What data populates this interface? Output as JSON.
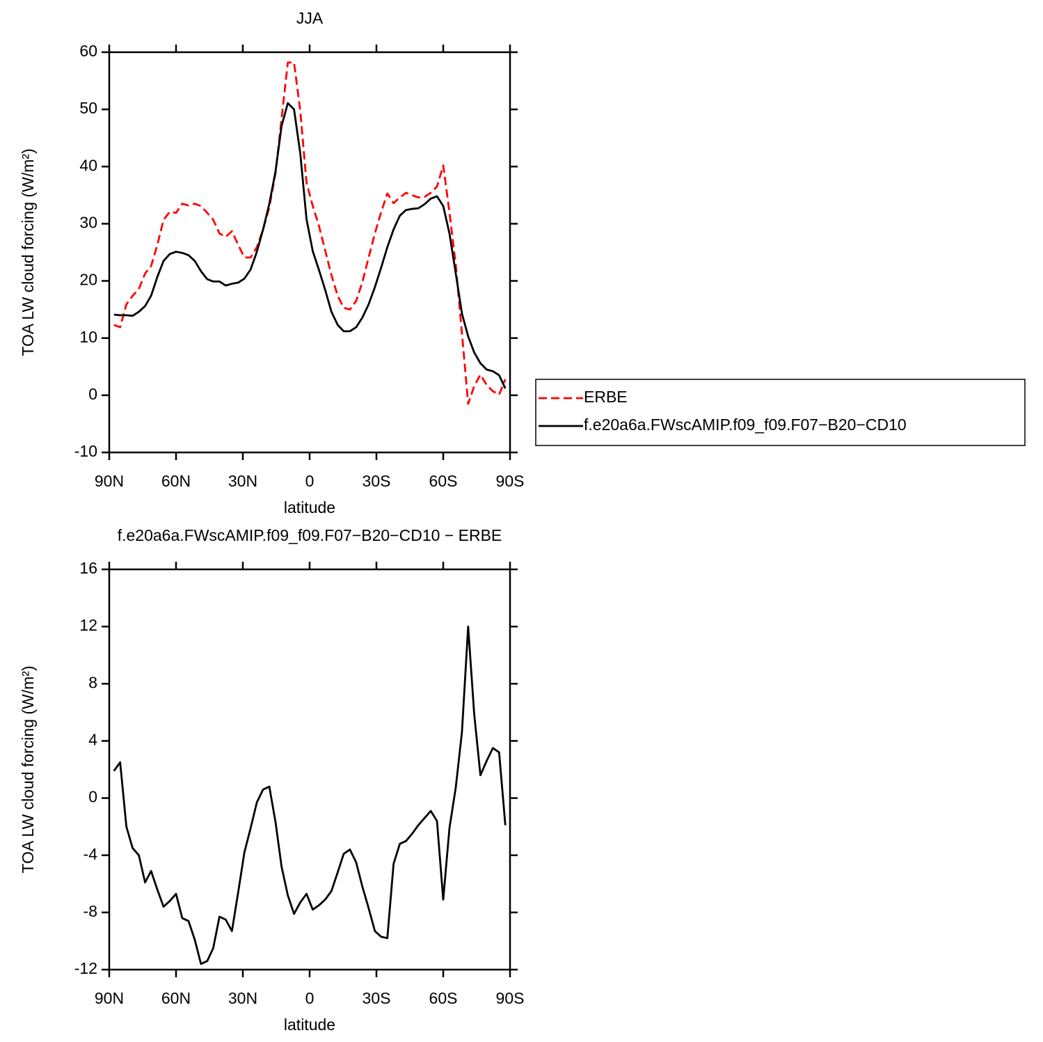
{
  "chart_data": [
    {
      "type": "line",
      "title": "JJA",
      "xlabel": "latitude",
      "ylabel": "TOA LW cloud forcing (W/m²)",
      "x": [
        87.9,
        85.1,
        82.3,
        79.5,
        76.7,
        73.9,
        71.2,
        68.4,
        65.6,
        62.8,
        60.0,
        57.2,
        54.4,
        51.6,
        48.8,
        46.0,
        43.3,
        40.5,
        37.7,
        34.9,
        32.1,
        29.3,
        26.5,
        23.7,
        20.9,
        18.1,
        15.3,
        12.6,
        9.8,
        7.0,
        4.2,
        1.4,
        -1.4,
        -4.2,
        -7.0,
        -9.8,
        -12.6,
        -15.3,
        -18.1,
        -20.9,
        -23.7,
        -26.5,
        -29.3,
        -32.1,
        -34.9,
        -37.7,
        -40.5,
        -43.3,
        -46.0,
        -48.8,
        -51.6,
        -54.4,
        -57.2,
        -60.0,
        -62.8,
        -65.6,
        -68.4,
        -71.2,
        -73.9,
        -76.7,
        -79.5,
        -82.3,
        -85.1,
        -87.9
      ],
      "series": [
        {
          "name": "ERBE",
          "color": "#ff0000",
          "dash": "dashed",
          "values": [
            12.3,
            11.9,
            15.9,
            17.4,
            18.6,
            21.3,
            22.6,
            26.3,
            30.7,
            32.1,
            31.9,
            33.5,
            33.2,
            33.5,
            33.1,
            31.9,
            30.7,
            28.3,
            27.7,
            28.7,
            26.3,
            24.1,
            24.1,
            25.9,
            29.0,
            32.9,
            38.9,
            48.4,
            58.2,
            58.2,
            49.7,
            37.2,
            33.1,
            29.6,
            25.3,
            21.0,
            17.4,
            15.3,
            15.0,
            16.5,
            19.8,
            24.1,
            28.3,
            32.0,
            35.3,
            33.6,
            34.6,
            35.4,
            35.0,
            34.6,
            34.7,
            35.4,
            36.5,
            40.2,
            32.0,
            22.9,
            10.9,
            -1.5,
            1.6,
            3.6,
            1.8,
            0.7,
            0.1,
            2.8
          ]
        },
        {
          "name": "f.e20a6a.FWscAMIP.f09_f09.F07−B20−CD10",
          "color": "#000000",
          "dash": "solid",
          "values": [
            14.1,
            14.0,
            14.0,
            13.9,
            14.6,
            15.6,
            17.4,
            20.7,
            23.5,
            24.7,
            25.1,
            24.9,
            24.5,
            23.5,
            21.7,
            20.3,
            19.9,
            19.9,
            19.2,
            19.5,
            19.7,
            20.4,
            22.0,
            25.1,
            29.0,
            33.5,
            39.2,
            47.1,
            51.1,
            50.0,
            42.3,
            30.8,
            25.2,
            21.9,
            18.4,
            14.6,
            12.3,
            11.2,
            11.2,
            11.9,
            13.6,
            15.9,
            18.9,
            22.3,
            25.9,
            29.0,
            31.4,
            32.4,
            32.6,
            32.7,
            33.4,
            34.4,
            34.8,
            33.1,
            28.3,
            21.4,
            14.3,
            10.3,
            7.5,
            5.6,
            4.5,
            4.2,
            3.5,
            1.2
          ]
        }
      ],
      "xlim": [
        90,
        -90
      ],
      "xticks": [
        {
          "value": 90,
          "label": "90N"
        },
        {
          "value": 60,
          "label": "60N"
        },
        {
          "value": 30,
          "label": "30N"
        },
        0,
        {
          "value": -30,
          "label": "30S"
        },
        {
          "value": -60,
          "label": "60S"
        },
        {
          "value": -90,
          "label": "90S"
        }
      ],
      "ylim": [
        -10,
        60
      ],
      "yticks": [
        -10,
        0,
        10,
        20,
        30,
        40,
        50,
        60
      ],
      "legend": "right"
    },
    {
      "type": "line",
      "title": "f.e20a6a.FWscAMIP.f09_f09.F07−B20−CD10 − ERBE",
      "xlabel": "latitude",
      "ylabel": "TOA LW cloud forcing (W/m²)",
      "x": [
        87.9,
        85.1,
        82.3,
        79.5,
        76.7,
        73.9,
        71.2,
        68.4,
        65.6,
        62.8,
        60.0,
        57.2,
        54.4,
        51.6,
        48.8,
        46.0,
        43.3,
        40.5,
        37.7,
        34.9,
        32.1,
        29.3,
        26.5,
        23.7,
        20.9,
        18.1,
        15.3,
        12.6,
        9.8,
        7.0,
        4.2,
        1.4,
        -1.4,
        -4.2,
        -7.0,
        -9.8,
        -12.6,
        -15.3,
        -18.1,
        -20.9,
        -23.7,
        -26.5,
        -29.3,
        -32.1,
        -34.9,
        -37.7,
        -40.5,
        -43.3,
        -46.0,
        -48.8,
        -51.6,
        -54.4,
        -57.2,
        -60.0,
        -62.8,
        -65.6,
        -68.4,
        -71.2,
        -73.9,
        -76.7,
        -79.5,
        -82.3,
        -85.1,
        -87.9
      ],
      "series": [
        {
          "color": "#000000",
          "dash": "solid",
          "values": [
            1.9,
            2.5,
            -2.0,
            -3.5,
            -4.0,
            -5.9,
            -5.1,
            -6.4,
            -7.6,
            -7.2,
            -6.7,
            -8.4,
            -8.6,
            -9.9,
            -11.6,
            -11.4,
            -10.5,
            -8.3,
            -8.5,
            -9.3,
            -6.6,
            -3.8,
            -2.1,
            -0.3,
            0.6,
            0.8,
            -1.7,
            -4.8,
            -6.8,
            -8.1,
            -7.3,
            -6.7,
            -7.8,
            -7.5,
            -7.1,
            -6.5,
            -5.2,
            -3.9,
            -3.6,
            -4.5,
            -6.2,
            -7.7,
            -9.3,
            -9.7,
            -9.8,
            -4.6,
            -3.2,
            -3.0,
            -2.5,
            -1.9,
            -1.4,
            -0.9,
            -1.6,
            -7.1,
            -2.1,
            0.7,
            4.6,
            12.0,
            5.9,
            1.6,
            2.6,
            3.5,
            3.2,
            -1.9
          ]
        }
      ],
      "xlim": [
        90,
        -90
      ],
      "xticks": [
        {
          "value": 90,
          "label": "90N"
        },
        {
          "value": 60,
          "label": "60N"
        },
        {
          "value": 30,
          "label": "30N"
        },
        0,
        {
          "value": -30,
          "label": "30S"
        },
        {
          "value": -60,
          "label": "60S"
        },
        {
          "value": -90,
          "label": "90S"
        }
      ],
      "ylim": [
        -12,
        16
      ],
      "yticks": [
        -12,
        -8,
        -4,
        0,
        4,
        8,
        12,
        16
      ]
    }
  ]
}
